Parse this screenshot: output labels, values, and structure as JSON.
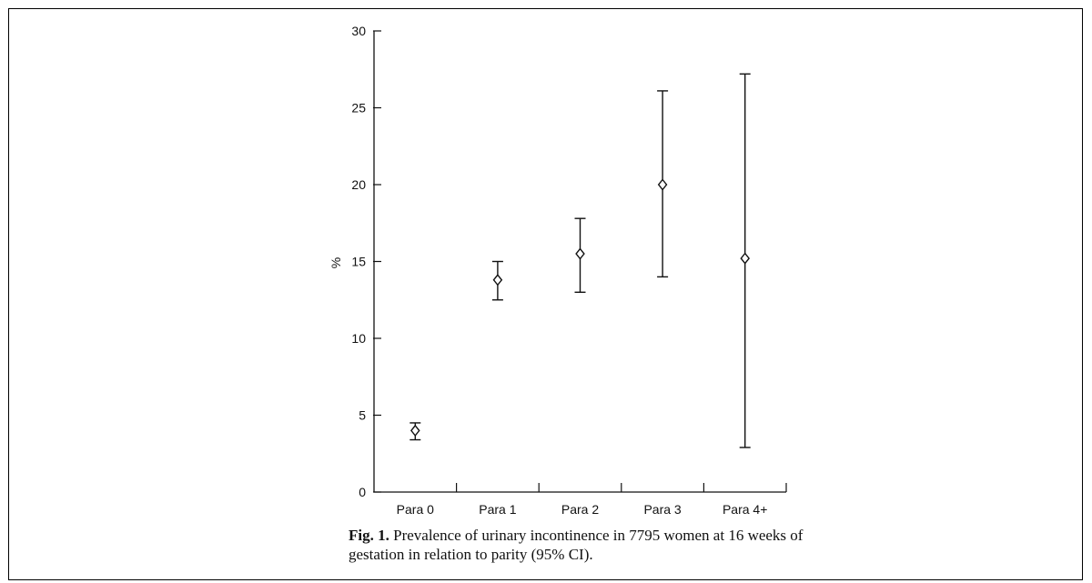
{
  "chart_data": {
    "type": "scatter",
    "categories": [
      "Para 0",
      "Para 1",
      "Para 2",
      "Para 3",
      "Para 4+"
    ],
    "values": [
      4.0,
      13.8,
      15.5,
      20.0,
      15.2
    ],
    "ci_lower": [
      3.4,
      12.5,
      13.0,
      14.0,
      2.9
    ],
    "ci_upper": [
      4.5,
      15.0,
      17.8,
      26.1,
      27.2
    ],
    "ylabel": "%",
    "xlabel": "",
    "ylim": [
      0,
      30
    ],
    "yticks": [
      0,
      5,
      10,
      15,
      20,
      25,
      30
    ],
    "grid": false,
    "marker": "diamond-open-with-error-bars"
  },
  "caption": {
    "label": "Fig. 1.",
    "text": "Prevalence of urinary incontinence in 7795 women at 16 weeks of gestation in relation to parity (95% CI)."
  }
}
